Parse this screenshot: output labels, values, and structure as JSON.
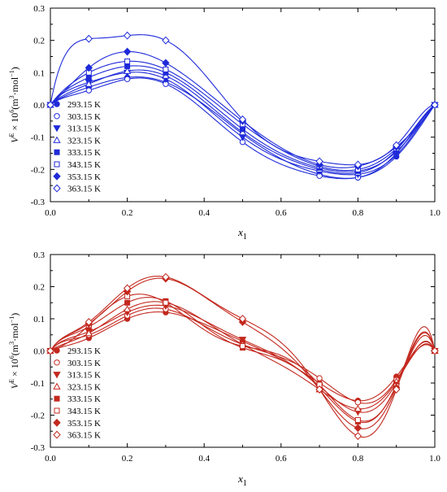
{
  "chart_data": [
    {
      "type": "scatter",
      "color": "#1f2bd9",
      "xlabel": "x",
      "xlabel_sub": "1",
      "ylabel_text": "V^E × 10^6 (m^3·mol^-1)",
      "ylabel": {
        "v": "V",
        "e": "E",
        "times": " × 10",
        "six": "6",
        "unit_open": "(m",
        "three": "3",
        "dot_mol": "·mol",
        "neg_one": "−1",
        "close": ")"
      },
      "xlim": [
        0,
        1
      ],
      "ylim": [
        -0.3,
        0.3
      ],
      "x_ticks": [
        "0.0",
        "0.2",
        "0.4",
        "0.6",
        "0.8",
        "1.0"
      ],
      "y_ticks": [
        "-0.3",
        "-0.2",
        "-0.1",
        "0.0",
        "0.1",
        "0.2",
        "0.3"
      ],
      "legend_position": "bottom-left",
      "x": [
        0,
        0.1,
        0.2,
        0.3,
        0.5,
        0.7,
        0.8,
        0.9,
        1.0
      ],
      "series": [
        {
          "name": "293.15 K",
          "marker": "circle-filled",
          "values": [
            0,
            0.055,
            0.085,
            0.07,
            -0.09,
            -0.215,
            -0.225,
            -0.16,
            0
          ]
        },
        {
          "name": "303.15 K",
          "marker": "circle-open",
          "values": [
            0,
            0.045,
            0.08,
            0.065,
            -0.115,
            -0.22,
            -0.225,
            -0.15,
            0
          ]
        },
        {
          "name": "313.15 K",
          "marker": "triangle-down-filled",
          "values": [
            0,
            0.07,
            0.1,
            0.08,
            -0.1,
            -0.205,
            -0.215,
            -0.155,
            0
          ]
        },
        {
          "name": "323.15 K",
          "marker": "triangle-up-open",
          "values": [
            0,
            0.065,
            0.105,
            0.09,
            -0.085,
            -0.2,
            -0.21,
            -0.14,
            0
          ]
        },
        {
          "name": "333.15 K",
          "marker": "square-filled",
          "values": [
            0,
            0.085,
            0.12,
            0.1,
            -0.075,
            -0.195,
            -0.205,
            -0.145,
            0
          ]
        },
        {
          "name": "343.15 K",
          "marker": "square-open",
          "values": [
            0,
            0.1,
            0.135,
            0.11,
            -0.06,
            -0.19,
            -0.2,
            -0.135,
            0
          ]
        },
        {
          "name": "353.15 K",
          "marker": "diamond-filled",
          "values": [
            0,
            0.115,
            0.165,
            0.13,
            -0.05,
            -0.185,
            -0.19,
            -0.13,
            0
          ]
        },
        {
          "name": "363.15 K",
          "marker": "diamond-open",
          "values": [
            0,
            0.205,
            0.215,
            0.2,
            -0.045,
            -0.175,
            -0.185,
            -0.125,
            0
          ]
        }
      ]
    },
    {
      "type": "scatter",
      "color": "#c3281e",
      "xlabel": "x",
      "xlabel_sub": "1",
      "ylabel_text": "V^E × 10^6 (m^3·mol^-1)",
      "ylabel": {
        "v": "V",
        "e": "E",
        "times": " × 10",
        "six": "6",
        "unit_open": "(m",
        "three": "3",
        "dot_mol": "·mol",
        "neg_one": "−1",
        "close": ")"
      },
      "xlim": [
        0,
        1
      ],
      "ylim": [
        -0.3,
        0.3
      ],
      "x_ticks": [
        "0.0",
        "0.2",
        "0.4",
        "0.6",
        "0.8",
        "1.0"
      ],
      "y_ticks": [
        "-0.3",
        "-0.2",
        "-0.1",
        "0.0",
        "0.1",
        "0.2",
        "0.3"
      ],
      "legend_position": "bottom-left",
      "x": [
        0,
        0.1,
        0.2,
        0.3,
        0.5,
        0.7,
        0.8,
        0.9,
        1.0
      ],
      "series": [
        {
          "name": "293.15 K",
          "marker": "circle-filled",
          "values": [
            0,
            0.04,
            0.1,
            0.12,
            0.03,
            -0.1,
            -0.155,
            -0.08,
            0
          ]
        },
        {
          "name": "303.15 K",
          "marker": "circle-open",
          "values": [
            0,
            0.05,
            0.11,
            0.13,
            0.02,
            -0.085,
            -0.16,
            -0.09,
            0
          ]
        },
        {
          "name": "313.15 K",
          "marker": "triangle-down-filled",
          "values": [
            0,
            0.06,
            0.12,
            0.14,
            0.035,
            -0.11,
            -0.19,
            -0.1,
            0
          ]
        },
        {
          "name": "323.15 K",
          "marker": "triangle-up-open",
          "values": [
            0,
            0.055,
            0.13,
            0.15,
            0.02,
            -0.12,
            -0.18,
            -0.095,
            0
          ]
        },
        {
          "name": "333.15 K",
          "marker": "square-filled",
          "values": [
            0,
            0.075,
            0.15,
            0.155,
            0.01,
            -0.115,
            -0.22,
            -0.105,
            0
          ]
        },
        {
          "name": "343.15 K",
          "marker": "square-open",
          "values": [
            0,
            0.08,
            0.17,
            0.15,
            0.015,
            -0.105,
            -0.215,
            -0.11,
            0
          ]
        },
        {
          "name": "353.15 K",
          "marker": "diamond-filled",
          "values": [
            0,
            0.085,
            0.185,
            0.225,
            0.09,
            -0.12,
            -0.24,
            -0.115,
            0
          ]
        },
        {
          "name": "363.15 K",
          "marker": "diamond-open",
          "values": [
            0,
            0.09,
            0.195,
            0.23,
            0.1,
            -0.12,
            -0.265,
            -0.12,
            0
          ]
        }
      ]
    }
  ]
}
